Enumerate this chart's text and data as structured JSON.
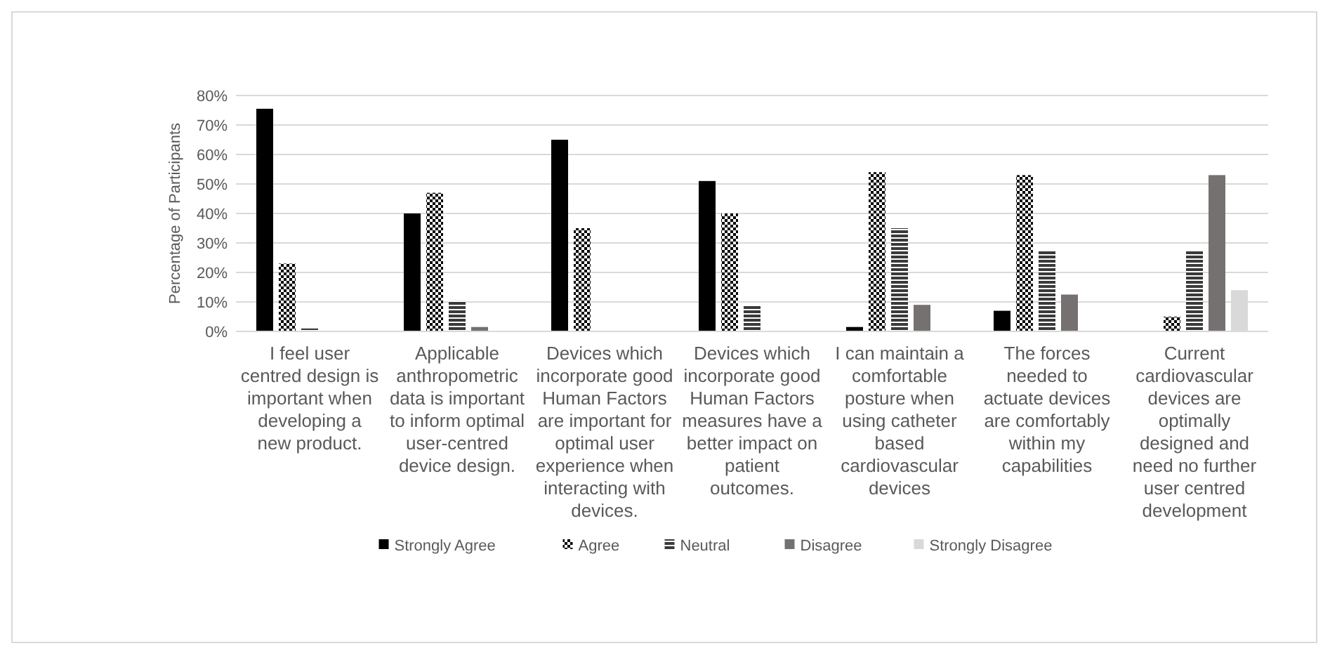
{
  "chart_data": {
    "type": "bar",
    "ylabel": "Percentage of Participants",
    "categories": [
      "I feel user centred design is important when developing a new product.",
      "Applicable anthropometric data is important to inform optimal user-centred device design.",
      "Devices which incorporate good Human Factors are important for optimal user experience when interacting with devices.",
      "Devices which incorporate good Human Factors measures have a better impact on patient outcomes.",
      "I can maintain a comfortable posture when using catheter based cardiovascular devices",
      "The forces needed to actuate devices are comfortably within my capabilities",
      "Current cardiovascular devices are optimally designed and need no further user centred development"
    ],
    "series": [
      {
        "name": "Strongly Agree",
        "color": "#000000",
        "values": [
          75.5,
          40,
          65,
          51,
          1.5,
          7,
          0
        ]
      },
      {
        "name": "Agree",
        "color": "#000000",
        "values": [
          23,
          47,
          35,
          40,
          54,
          53,
          5
        ]
      },
      {
        "name": "Neutral",
        "color": "#3a3a3a",
        "values": [
          1,
          10.5,
          0,
          9,
          35,
          27.5,
          27.5
        ]
      },
      {
        "name": "Disagree",
        "color": "#767171",
        "values": [
          0,
          1.5,
          0,
          0,
          9,
          12.5,
          53
        ]
      },
      {
        "name": "Strongly Disagree",
        "color": "#d9d9d9",
        "values": [
          0,
          0,
          0,
          0,
          0,
          0,
          14
        ]
      }
    ],
    "ylim": [
      0,
      80
    ],
    "yticks": [
      {
        "value": 0,
        "label": "0%"
      },
      {
        "value": 10,
        "label": "10%"
      },
      {
        "value": 20,
        "label": "20%"
      },
      {
        "value": 30,
        "label": "30%"
      },
      {
        "value": 40,
        "label": "40%"
      },
      {
        "value": 50,
        "label": "50%"
      },
      {
        "value": 60,
        "label": "60%"
      },
      {
        "value": 70,
        "label": "70%"
      },
      {
        "value": 80,
        "label": "80%"
      }
    ],
    "grid": true,
    "legend": "bottom"
  }
}
